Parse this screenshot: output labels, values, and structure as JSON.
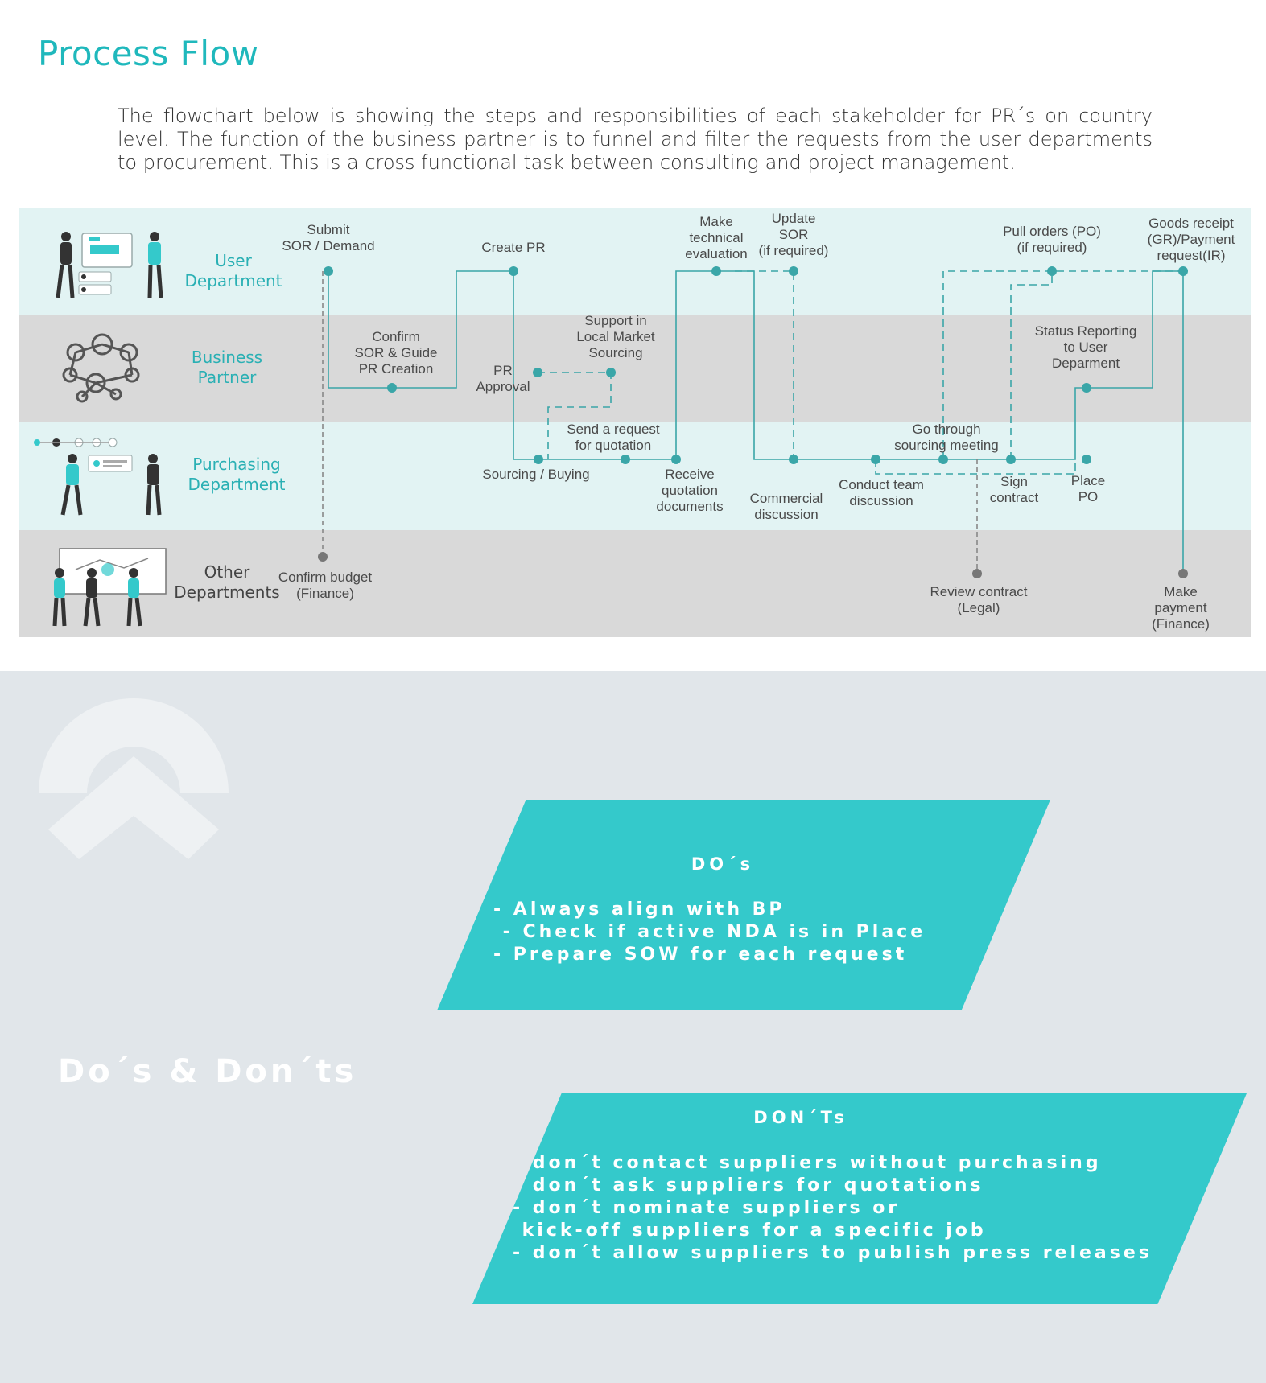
{
  "header": {
    "title": "Process Flow",
    "intro": "The flowchart below is showing the steps and responsibilities of each stakeholder for PR´s on country level. The function of the business partner is to funnel and filter the requests from the user departments to procurement. This is a cross functional task between consulting and project management."
  },
  "lanes": [
    {
      "label": "User\nDepartment"
    },
    {
      "label": "Business\nPartner"
    },
    {
      "label": "Purchasing\nDepartment"
    },
    {
      "label": "Other\nDepartments"
    }
  ],
  "steps": {
    "submit_sor": "Submit\nSOR / Demand",
    "create_pr": "Create PR",
    "make_tech_eval": "Make\ntechnical\nevaluation",
    "update_sor": "Update\nSOR\n(if required)",
    "pull_orders": "Pull orders (PO)\n(if required)",
    "goods_receipt": "Goods receipt\n(GR)/Payment\nrequest(IR)",
    "confirm_sor": "Confirm\nSOR & Guide\nPR Creation",
    "pr_approval": "PR\nApproval",
    "support_local": "Support in\nLocal Market\nSourcing",
    "status_reporting": "Status Reporting\nto User\nDeparment",
    "send_rfq": "Send a request\nfor quotation",
    "sourcing_buying": "Sourcing / Buying",
    "receive_quotes": "Receive\nquotation\ndocuments",
    "commercial": "Commercial\ndiscussion",
    "conduct_team": "Conduct team\ndiscussion",
    "sourcing_meeting": "Go through\nsourcing meeting",
    "sign_contract": "Sign\ncontract",
    "place_po": "Place\nPO",
    "confirm_budget": "Confirm budget\n(Finance)",
    "review_contract": "Review contract\n(Legal)",
    "make_payment": "Make payment\n(Finance)"
  },
  "section": {
    "title": "Do´s & Don´ts"
  },
  "dos": {
    "heading": "DO´s",
    "items": "- Always align with BP\n - Check if active NDA is in Place\n- Prepare SOW for each request"
  },
  "donts": {
    "heading": "DON´Ts",
    "items": "- don´t contact suppliers without purchasing\n- don´t ask suppliers for quotations\n- don´t nominate suppliers or\n kick-off suppliers for a specific job\n- don´t allow suppliers to publish press releases"
  },
  "colors": {
    "accent": "#1fb8bc",
    "box": "#34c9cb",
    "lane_light": "#e2f3f3",
    "lane_grey": "#d9d9d9",
    "lower_bg": "#e1e6ea"
  },
  "icons": [
    "user-department-illustration",
    "business-partner-network-icon",
    "purchasing-department-illustration",
    "other-departments-illustration",
    "brand-watermark-logo"
  ]
}
